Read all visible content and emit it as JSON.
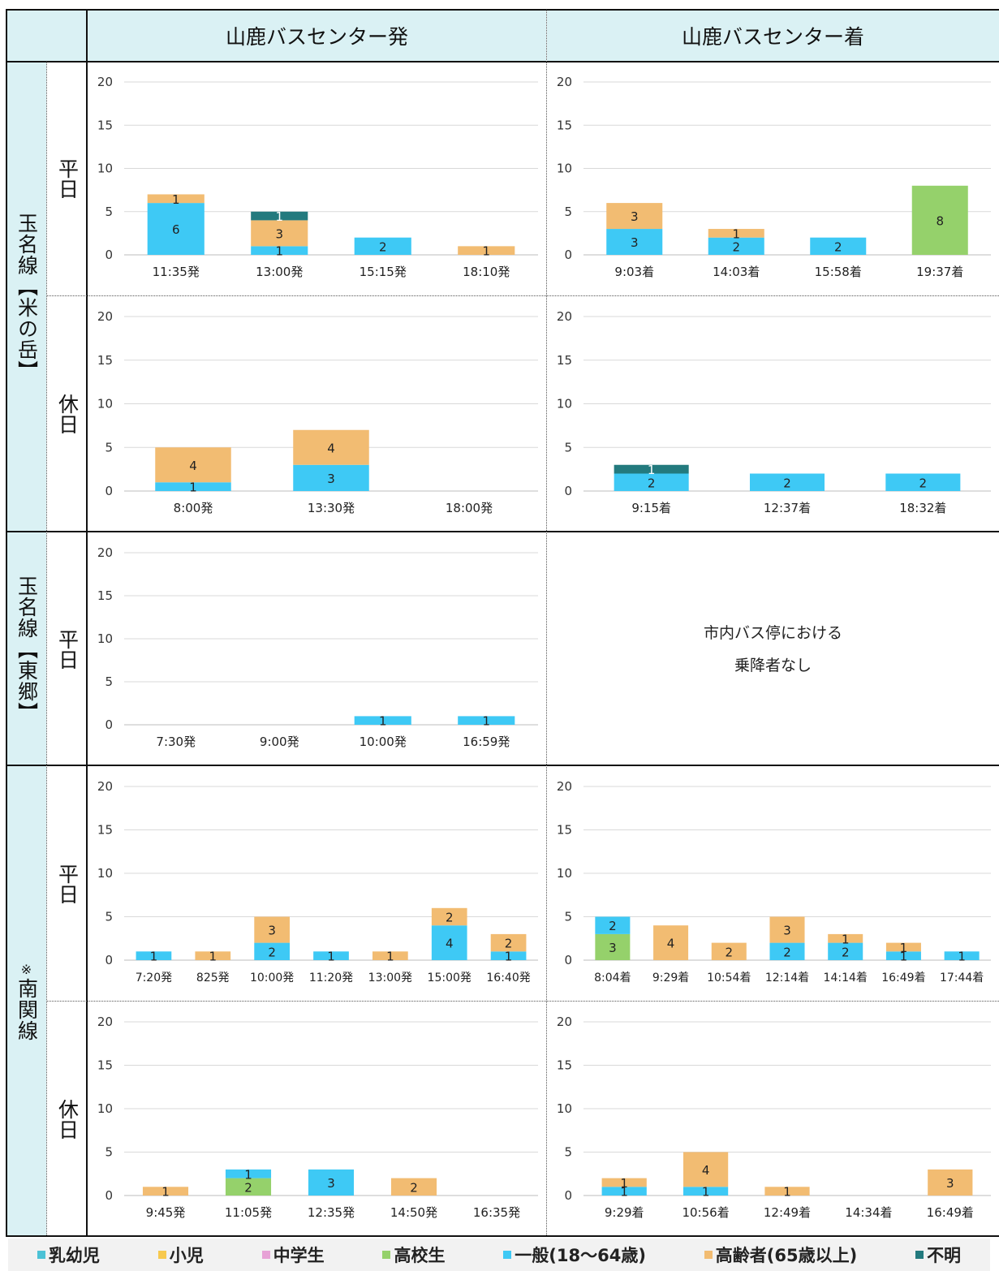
{
  "headers": {
    "departure": "山鹿バスセンター発",
    "arrival": "山鹿バスセンター着"
  },
  "routes": {
    "r1": "玉名線【米の岳】",
    "r2": "玉名線【東郷】",
    "r3_mark": "※",
    "r3": "南関線"
  },
  "day_types": {
    "weekday": "平日",
    "holiday": "休日"
  },
  "no_data_text": [
    "市内バス停における",
    "乗降者なし"
  ],
  "colors": {
    "乳幼児": "#4cc2d6",
    "小児": "#f7c94e",
    "中学生": "#e7a2d6",
    "高校生": "#95d16b",
    "一般": "#3ec9f5",
    "高齢者": "#f2bc72",
    "不明": "#237a7e"
  },
  "legend": [
    {
      "key": "乳幼児",
      "label": "乳幼児"
    },
    {
      "key": "小児",
      "label": "小児"
    },
    {
      "key": "中学生",
      "label": "中学生"
    },
    {
      "key": "高校生",
      "label": "高校生"
    },
    {
      "key": "一般",
      "label": "一般(18～64歳)"
    },
    {
      "key": "高齢者",
      "label": "高齢者(65歳以上)"
    },
    {
      "key": "不明",
      "label": "不明"
    }
  ],
  "chart_data": [
    {
      "id": "p1",
      "type": "bar",
      "stacked": true,
      "ylim": [
        0,
        20
      ],
      "yticks": [
        0,
        5,
        10,
        15,
        20
      ],
      "grid": true,
      "categories": [
        "11:35発",
        "13:00発",
        "15:15発",
        "18:10発"
      ],
      "series": [
        {
          "name": "一般",
          "values": [
            6,
            1,
            2,
            0
          ]
        },
        {
          "name": "高齢者",
          "values": [
            1,
            3,
            0,
            1
          ]
        },
        {
          "name": "不明",
          "values": [
            0,
            1,
            0,
            0
          ]
        }
      ]
    },
    {
      "id": "p2",
      "type": "bar",
      "stacked": true,
      "ylim": [
        0,
        20
      ],
      "yticks": [
        0,
        5,
        10,
        15,
        20
      ],
      "grid": true,
      "categories": [
        "9:03着",
        "14:03着",
        "15:58着",
        "19:37着"
      ],
      "series": [
        {
          "name": "一般",
          "values": [
            3,
            2,
            2,
            0
          ]
        },
        {
          "name": "高齢者",
          "values": [
            3,
            1,
            0,
            0
          ]
        },
        {
          "name": "高校生",
          "values": [
            0,
            0,
            0,
            8
          ]
        }
      ]
    },
    {
      "id": "p3",
      "type": "bar",
      "stacked": true,
      "ylim": [
        0,
        20
      ],
      "yticks": [
        0,
        5,
        10,
        15,
        20
      ],
      "grid": true,
      "categories": [
        "8:00発",
        "13:30発",
        "18:00発"
      ],
      "series": [
        {
          "name": "一般",
          "values": [
            1,
            3,
            0
          ]
        },
        {
          "name": "高齢者",
          "values": [
            4,
            4,
            0
          ]
        }
      ]
    },
    {
      "id": "p4",
      "type": "bar",
      "stacked": true,
      "ylim": [
        0,
        20
      ],
      "yticks": [
        0,
        5,
        10,
        15,
        20
      ],
      "grid": true,
      "categories": [
        "9:15着",
        "12:37着",
        "18:32着"
      ],
      "series": [
        {
          "name": "一般",
          "values": [
            2,
            2,
            2
          ]
        },
        {
          "name": "不明",
          "values": [
            1,
            0,
            0
          ]
        }
      ]
    },
    {
      "id": "p5",
      "type": "bar",
      "stacked": true,
      "ylim": [
        0,
        20
      ],
      "yticks": [
        0,
        5,
        10,
        15,
        20
      ],
      "grid": true,
      "categories": [
        "7:30発",
        "9:00発",
        "10:00発",
        "16:59発"
      ],
      "series": [
        {
          "name": "一般",
          "values": [
            0,
            0,
            1,
            1
          ]
        }
      ]
    },
    {
      "id": "p7",
      "type": "bar",
      "stacked": true,
      "ylim": [
        0,
        20
      ],
      "yticks": [
        0,
        5,
        10,
        15,
        20
      ],
      "grid": true,
      "categories": [
        "7:20発",
        "825発",
        "10:00発",
        "11:20発",
        "13:00発",
        "15:00発",
        "16:40発"
      ],
      "series": [
        {
          "name": "一般",
          "values": [
            1,
            0,
            2,
            1,
            0,
            4,
            1
          ]
        },
        {
          "name": "高齢者",
          "values": [
            0,
            1,
            3,
            0,
            1,
            2,
            2
          ]
        }
      ]
    },
    {
      "id": "p8",
      "type": "bar",
      "stacked": true,
      "ylim": [
        0,
        20
      ],
      "yticks": [
        0,
        5,
        10,
        15,
        20
      ],
      "grid": true,
      "categories": [
        "8:04着",
        "9:29着",
        "10:54着",
        "12:14着",
        "14:14着",
        "16:49着",
        "17:44着"
      ],
      "series": [
        {
          "name": "高校生",
          "values": [
            3,
            0,
            0,
            0,
            0,
            0,
            0
          ]
        },
        {
          "name": "一般",
          "values": [
            2,
            0,
            0,
            2,
            2,
            1,
            1
          ]
        },
        {
          "name": "高齢者",
          "values": [
            0,
            4,
            2,
            3,
            1,
            1,
            0
          ]
        }
      ]
    },
    {
      "id": "p9",
      "type": "bar",
      "stacked": true,
      "ylim": [
        0,
        20
      ],
      "yticks": [
        0,
        5,
        10,
        15,
        20
      ],
      "grid": true,
      "categories": [
        "9:45発",
        "11:05発",
        "12:35発",
        "14:50発",
        "16:35発"
      ],
      "series": [
        {
          "name": "高校生",
          "values": [
            0,
            2,
            0,
            0,
            0
          ]
        },
        {
          "name": "一般",
          "values": [
            0,
            1,
            3,
            0,
            0
          ]
        },
        {
          "name": "高齢者",
          "values": [
            1,
            0,
            0,
            2,
            0
          ]
        }
      ]
    },
    {
      "id": "p10",
      "type": "bar",
      "stacked": true,
      "ylim": [
        0,
        20
      ],
      "yticks": [
        0,
        5,
        10,
        15,
        20
      ],
      "grid": true,
      "categories": [
        "9:29着",
        "10:56着",
        "12:49着",
        "14:34着",
        "16:49着"
      ],
      "series": [
        {
          "name": "一般",
          "values": [
            1,
            1,
            0,
            0,
            0
          ]
        },
        {
          "name": "高齢者",
          "values": [
            1,
            4,
            1,
            0,
            3
          ]
        }
      ]
    }
  ]
}
